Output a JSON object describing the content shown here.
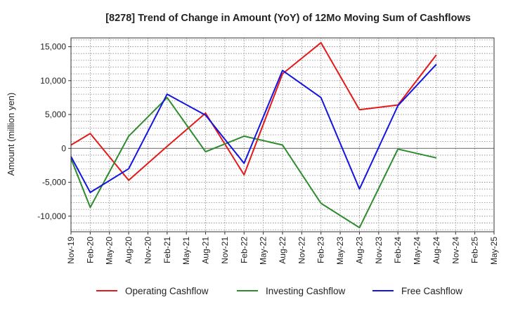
{
  "chart_data": {
    "type": "line",
    "title": "[8278]  Trend of Change in Amount (YoY) of 12Mo Moving Sum of Cashflows",
    "xlabel": "",
    "ylabel": "Amount (million yen)",
    "ylim": [
      -12300,
      16300
    ],
    "yticks": [
      15000,
      10000,
      5000,
      0,
      -5000,
      -10000
    ],
    "ytick_labels": [
      "15,000",
      "10,000",
      "5,000",
      "0",
      "-5,000",
      "-10,000"
    ],
    "categories": [
      "Nov-19",
      "Feb-20",
      "May-20",
      "Aug-20",
      "Nov-20",
      "Feb-21",
      "May-21",
      "Aug-21",
      "Nov-21",
      "Feb-22",
      "May-22",
      "Aug-22",
      "Nov-22",
      "Feb-23",
      "May-23",
      "Aug-23",
      "Nov-23",
      "Feb-24",
      "May-24",
      "Aug-24",
      "Nov-24",
      "Feb-25",
      "May-25"
    ],
    "grid": true,
    "legend_position": "bottom",
    "series": [
      {
        "name": "Operating Cashflow",
        "color": "#e41a1a",
        "values": [
          500,
          2200,
          null,
          -4700,
          null,
          300,
          null,
          5200,
          null,
          -3900,
          null,
          11000,
          null,
          15600,
          null,
          5700,
          null,
          6400,
          null,
          13800,
          null,
          null,
          null
        ]
      },
      {
        "name": "Investing Cashflow",
        "color": "#2e8b2e",
        "values": [
          -1500,
          -8700,
          null,
          1800,
          null,
          7500,
          null,
          -500,
          null,
          1800,
          null,
          500,
          null,
          -8100,
          null,
          -11700,
          null,
          -100,
          null,
          -1400,
          null,
          null,
          null
        ]
      },
      {
        "name": "Free Cashflow",
        "color": "#1414e0",
        "values": [
          -1200,
          -6500,
          null,
          -3000,
          null,
          8000,
          null,
          4900,
          null,
          -2200,
          null,
          11500,
          null,
          7500,
          null,
          -6000,
          null,
          6300,
          null,
          12400,
          null,
          null,
          null
        ]
      }
    ]
  }
}
